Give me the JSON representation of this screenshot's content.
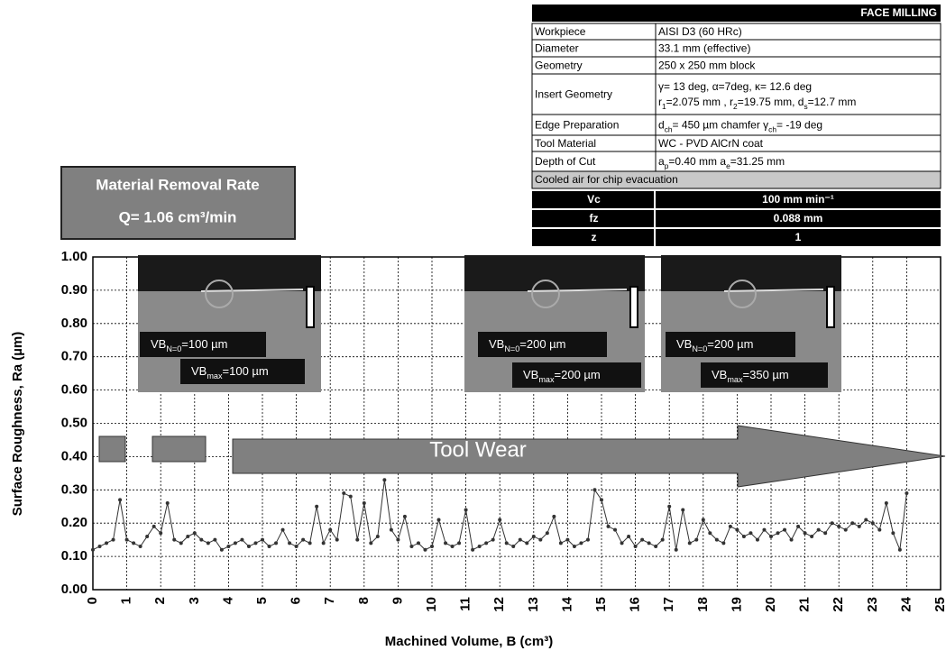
{
  "chart_data": {
    "type": "line",
    "x_label": "Machined Volume, B (cm³)",
    "y_label": "Surface Roughness, Ra (µm)",
    "x": [
      0,
      0.2,
      0.4,
      0.6,
      0.8,
      1.0,
      1.2,
      1.4,
      1.6,
      1.8,
      2.0,
      2.2,
      2.4,
      2.6,
      2.8,
      3.0,
      3.2,
      3.4,
      3.6,
      3.8,
      4.0,
      4.2,
      4.4,
      4.6,
      4.8,
      5.0,
      5.2,
      5.4,
      5.6,
      5.8,
      6.0,
      6.2,
      6.4,
      6.6,
      6.8,
      7.0,
      7.2,
      7.4,
      7.6,
      7.8,
      8.0,
      8.2,
      8.4,
      8.6,
      8.8,
      9.0,
      9.2,
      9.4,
      9.6,
      9.8,
      10.0,
      10.2,
      10.4,
      10.6,
      10.8,
      11.0,
      11.2,
      11.4,
      11.6,
      11.8,
      12.0,
      12.2,
      12.4,
      12.6,
      12.8,
      13.0,
      13.2,
      13.4,
      13.6,
      13.8,
      14.0,
      14.2,
      14.4,
      14.6,
      14.8,
      15.0,
      15.2,
      15.4,
      15.6,
      15.8,
      16.0,
      16.2,
      16.4,
      16.6,
      16.8,
      17.0,
      17.2,
      17.4,
      17.6,
      17.8,
      18.0,
      18.2,
      18.4,
      18.6,
      18.8,
      19.0,
      19.2,
      19.4,
      19.6,
      19.8,
      20.0,
      20.2,
      20.4,
      20.6,
      20.8,
      21.0,
      21.2,
      21.4,
      21.6,
      21.8,
      22.0,
      22.2,
      22.4,
      22.6,
      22.8,
      23.0,
      23.2,
      23.4,
      23.6,
      23.8,
      24.0
    ],
    "series": [
      {
        "color": "#333333",
        "values": [
          0.12,
          0.13,
          0.14,
          0.15,
          0.27,
          0.15,
          0.14,
          0.13,
          0.16,
          0.19,
          0.17,
          0.26,
          0.15,
          0.14,
          0.16,
          0.17,
          0.15,
          0.14,
          0.15,
          0.12,
          0.13,
          0.14,
          0.15,
          0.13,
          0.14,
          0.15,
          0.13,
          0.14,
          0.18,
          0.14,
          0.13,
          0.15,
          0.14,
          0.25,
          0.14,
          0.18,
          0.15,
          0.29,
          0.28,
          0.15,
          0.26,
          0.14,
          0.16,
          0.33,
          0.18,
          0.15,
          0.22,
          0.13,
          0.14,
          0.12,
          0.13,
          0.21,
          0.14,
          0.13,
          0.14,
          0.24,
          0.12,
          0.13,
          0.14,
          0.15,
          0.21,
          0.14,
          0.13,
          0.15,
          0.14,
          0.16,
          0.15,
          0.17,
          0.22,
          0.14,
          0.15,
          0.13,
          0.14,
          0.15,
          0.3,
          0.27,
          0.19,
          0.18,
          0.14,
          0.16,
          0.13,
          0.15,
          0.14,
          0.13,
          0.15,
          0.25,
          0.12,
          0.24,
          0.14,
          0.15,
          0.21,
          0.17,
          0.15,
          0.14,
          0.19,
          0.18,
          0.16,
          0.17,
          0.15,
          0.18,
          0.16,
          0.17,
          0.18,
          0.15,
          0.19,
          0.17,
          0.16,
          0.18,
          0.17,
          0.2,
          0.19,
          0.18,
          0.2,
          0.19,
          0.21,
          0.2,
          0.18,
          0.26,
          0.17,
          0.12,
          0.29
        ]
      }
    ],
    "xlim": [
      0,
      25
    ],
    "xticks": [
      0,
      1,
      2,
      3,
      4,
      5,
      6,
      7,
      8,
      9,
      10,
      11,
      12,
      13,
      14,
      15,
      16,
      17,
      18,
      19,
      20,
      21,
      22,
      23,
      24,
      25
    ],
    "ylim": [
      0,
      1
    ],
    "yticks": [
      {
        "value": 0,
        "label": "0.00"
      },
      {
        "value": 0.1,
        "label": "0.10"
      },
      {
        "value": 0.2,
        "label": "0.20"
      },
      {
        "value": 0.3,
        "label": "0.30"
      },
      {
        "value": 0.4,
        "label": "0.40"
      },
      {
        "value": 0.5,
        "label": "0.50"
      },
      {
        "value": 0.6,
        "label": "0.60"
      },
      {
        "value": 0.7,
        "label": "0.70"
      },
      {
        "value": 0.8,
        "label": "0.80"
      },
      {
        "value": 0.9,
        "label": "0.90"
      },
      {
        "value": 1,
        "label": "1.00"
      }
    ],
    "grid": true
  },
  "rate_box": {
    "title": "Material Removal Rate",
    "value": "Q= 1.06 cm³/min"
  },
  "table": {
    "title": "FACE MILLING",
    "rows": [
      {
        "label": "Workpiece",
        "lines": [
          "AISI D3 (60 HRc)"
        ]
      },
      {
        "label": "Diameter",
        "lines": [
          "33.1 mm (effective)"
        ]
      },
      {
        "label": "Geometry",
        "lines": [
          "250 x 250 mm block"
        ]
      },
      {
        "label": "Insert Geometry",
        "lines": [
          "γ= 13 deg, α=7deg, κ= 12.6 deg",
          [
            "r",
            "1",
            "=2.075 mm , r",
            "2",
            "=19.75 mm, d",
            "s",
            "=12.7 mm"
          ]
        ]
      },
      {
        "label": "Edge Preparation",
        "lines": [
          [
            "d",
            "ch",
            "= 450 µm chamfer γ",
            "ch",
            "= -19 deg"
          ]
        ]
      },
      {
        "label": "Tool Material",
        "lines": [
          "WC - PVD AlCrN coat"
        ]
      },
      {
        "label": "Depth of Cut",
        "lines": [
          [
            "a",
            "p",
            "=0.40 mm a",
            "e",
            "=31.25 mm"
          ]
        ]
      }
    ],
    "note": "Cooled air for chip evacuation",
    "params": [
      [
        "Vc",
        "100 mm min⁻¹"
      ],
      [
        "fz",
        "0.088 mm"
      ],
      [
        "z",
        "1"
      ]
    ]
  },
  "photos": [
    {
      "wear_n": [
        "VB",
        "N=0",
        "=100 µm"
      ],
      "wear_max": [
        "VB",
        "max",
        "=100 µm"
      ]
    },
    {
      "wear_n": [
        "VB",
        "N=0",
        "=200 µm"
      ],
      "wear_max": [
        "VB",
        "max",
        "=200 µm"
      ]
    },
    {
      "wear_n": [
        "VB",
        "N=0",
        "=200 µm"
      ],
      "wear_max": [
        "VB",
        "max",
        "=350 µm"
      ]
    }
  ],
  "arrow_label": "Tool Wear"
}
